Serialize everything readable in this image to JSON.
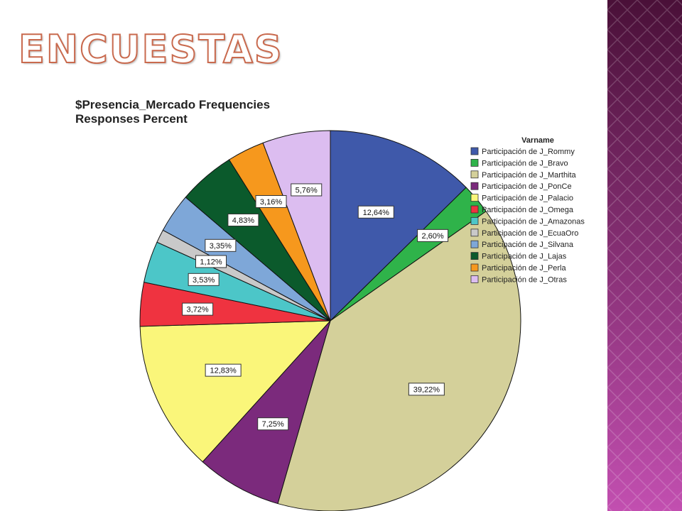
{
  "slide": {
    "title": "ENCUESTAS"
  },
  "colors": {
    "band_dark": "#4a1038",
    "band_light": "#c24fb0",
    "slice_stroke": "#111111"
  },
  "chart_data": {
    "type": "pie",
    "title_line1": "$Presencia_Mercado Frequencies",
    "title_line2": "Responses Percent",
    "legend_title": "Varname",
    "legend_position": "right",
    "slices": [
      {
        "name": "Participación de J_Rommy",
        "value": 12.64,
        "label": "12,64%",
        "color": "#3f59aa"
      },
      {
        "name": "Participación de J_Bravo",
        "value": 2.6,
        "label": "2,60%",
        "color": "#2fb34a"
      },
      {
        "name": "Participación de J_Marthita",
        "value": 39.22,
        "label": "39,22%",
        "color": "#d4d09a"
      },
      {
        "name": "Participación de J_PonCe",
        "value": 7.25,
        "label": "7,25%",
        "color": "#7b2a7c"
      },
      {
        "name": "Participación de J_Palacio",
        "value": 12.83,
        "label": "12,83%",
        "color": "#faf67a"
      },
      {
        "name": "Participación de J_Omega",
        "value": 3.72,
        "label": "3,72%",
        "color": "#ef3340"
      },
      {
        "name": "Participación de J_Amazonas",
        "value": 3.53,
        "label": "3,53%",
        "color": "#4cc6c8"
      },
      {
        "name": "Participación de J_EcuaOro",
        "value": 1.12,
        "label": "1,12%",
        "color": "#c9c9c9"
      },
      {
        "name": "Participación de J_Silvana",
        "value": 3.35,
        "label": "3,35%",
        "color": "#7ea7d8"
      },
      {
        "name": "Participación de J_Lajas",
        "value": 4.83,
        "label": "4,83%",
        "color": "#0b5a2c"
      },
      {
        "name": "Participación de J_Perla",
        "value": 3.16,
        "label": "3,16%",
        "color": "#f6981d"
      },
      {
        "name": "Participación de J_Otras",
        "value": 5.76,
        "label": "5,76%",
        "color": "#dcbdf0"
      }
    ]
  }
}
